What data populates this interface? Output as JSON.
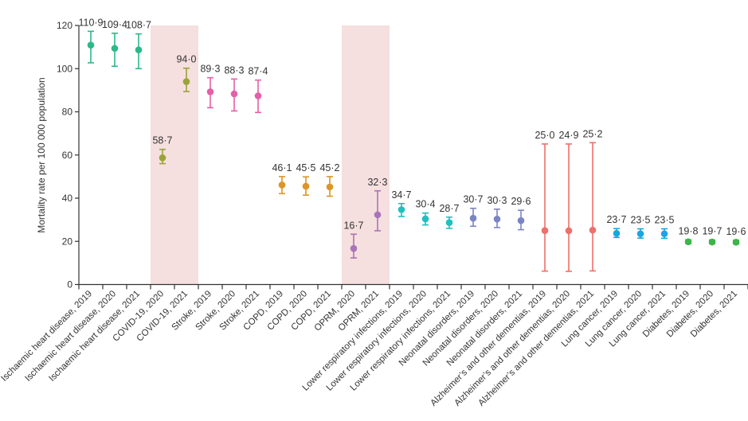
{
  "chart_data": {
    "type": "scatter",
    "title": "",
    "xlabel": "",
    "ylabel": "Mortality rate per 100 000 population",
    "ylim": [
      0,
      120
    ],
    "yticks": [
      "0",
      "20",
      "40",
      "60",
      "80",
      "100",
      "120"
    ],
    "grid": false,
    "highlight_color": "#f6dfdf",
    "highlighted_groups": [
      "COVID-19",
      "OPRM"
    ],
    "points": [
      {
        "label": "Ischaemic heart disease, 2019",
        "value": 110.9,
        "value_label": "110·9",
        "lower": 102.7,
        "upper": 117.3,
        "color": "#2bb987"
      },
      {
        "label": "Ischaemic heart disease, 2020",
        "value": 109.4,
        "value_label": "109·4",
        "lower": 101.1,
        "upper": 116.4,
        "color": "#2bb987"
      },
      {
        "label": "Ischaemic heart disease, 2021",
        "value": 108.7,
        "value_label": "108·7",
        "lower": 100.0,
        "upper": 116.1,
        "color": "#2bb987"
      },
      {
        "label": "COVID-19, 2020",
        "value": 58.7,
        "value_label": "58·7",
        "lower": 56.0,
        "upper": 62.6,
        "color": "#9aa33a"
      },
      {
        "label": "COVID-19, 2021",
        "value": 94.0,
        "value_label": "94·0",
        "lower": 89.4,
        "upper": 100.2,
        "color": "#9aa33a"
      },
      {
        "label": "Stroke, 2019",
        "value": 89.3,
        "value_label": "89·3",
        "lower": 81.9,
        "upper": 95.8,
        "color": "#e55fa8"
      },
      {
        "label": "Stroke, 2020",
        "value": 88.3,
        "value_label": "88·3",
        "lower": 80.4,
        "upper": 95.2,
        "color": "#e55fa8"
      },
      {
        "label": "Stroke, 2021",
        "value": 87.4,
        "value_label": "87·4",
        "lower": 79.7,
        "upper": 94.7,
        "color": "#e55fa8"
      },
      {
        "label": "COPD, 2019",
        "value": 46.1,
        "value_label": "46·1",
        "lower": 42.1,
        "upper": 50.0,
        "color": "#dc9527"
      },
      {
        "label": "COPD, 2020",
        "value": 45.5,
        "value_label": "45·5",
        "lower": 41.4,
        "upper": 49.9,
        "color": "#dc9527"
      },
      {
        "label": "COPD, 2021",
        "value": 45.2,
        "value_label": "45·2",
        "lower": 40.9,
        "upper": 50.0,
        "color": "#dc9527"
      },
      {
        "label": "OPRM, 2020",
        "value": 16.7,
        "value_label": "16·7",
        "lower": 12.3,
        "upper": 23.3,
        "color": "#a974b8"
      },
      {
        "label": "OPRM, 2021",
        "value": 32.3,
        "value_label": "32·3",
        "lower": 24.9,
        "upper": 43.4,
        "color": "#a974b8"
      },
      {
        "label": "Lower respiratory infections, 2019",
        "value": 34.7,
        "value_label": "34·7",
        "lower": 31.5,
        "upper": 37.5,
        "color": "#22bfc0"
      },
      {
        "label": "Lower respiratory infections, 2020",
        "value": 30.4,
        "value_label": "30·4",
        "lower": 27.6,
        "upper": 33.1,
        "color": "#22bfc0"
      },
      {
        "label": "Lower respiratory infections, 2021",
        "value": 28.7,
        "value_label": "28·7",
        "lower": 26.0,
        "upper": 31.2,
        "color": "#22bfc0"
      },
      {
        "label": "Neonatal disorders, 2019",
        "value": 30.7,
        "value_label": "30·7",
        "lower": 27.0,
        "upper": 35.3,
        "color": "#7b85c4"
      },
      {
        "label": "Neonatal disorders, 2020",
        "value": 30.3,
        "value_label": "30·3",
        "lower": 26.4,
        "upper": 34.9,
        "color": "#7b85c4"
      },
      {
        "label": "Neonatal disorders, 2021",
        "value": 29.6,
        "value_label": "29·6",
        "lower": 25.4,
        "upper": 34.4,
        "color": "#7b85c4"
      },
      {
        "label": "Alzheimer’s and other dementias, 2019",
        "value": 25.0,
        "value_label": "25·0",
        "lower": 6.2,
        "upper": 65.1,
        "color": "#ef6f6a"
      },
      {
        "label": "Alzheimer’s and other dementias, 2020",
        "value": 24.9,
        "value_label": "24·9",
        "lower": 6.1,
        "upper": 65.1,
        "color": "#ef6f6a"
      },
      {
        "label": "Alzheimer’s and other dementias, 2021",
        "value": 25.2,
        "value_label": "25·2",
        "lower": 6.3,
        "upper": 65.7,
        "color": "#ef6f6a"
      },
      {
        "label": "Lung cancer, 2019",
        "value": 23.7,
        "value_label": "23·7",
        "lower": 21.8,
        "upper": 25.9,
        "color": "#1aa6e0"
      },
      {
        "label": "Lung cancer, 2020",
        "value": 23.5,
        "value_label": "23·5",
        "lower": 21.5,
        "upper": 25.8,
        "color": "#1aa6e0"
      },
      {
        "label": "Lung cancer, 2021",
        "value": 23.5,
        "value_label": "23·5",
        "lower": 21.4,
        "upper": 25.8,
        "color": "#1aa6e0"
      },
      {
        "label": "Diabetes, 2019",
        "value": 19.8,
        "value_label": "19·8",
        "lower": 19.0,
        "upper": 20.7,
        "color": "#3cb64a"
      },
      {
        "label": "Diabetes, 2020",
        "value": 19.7,
        "value_label": "19·7",
        "lower": 18.9,
        "upper": 20.6,
        "color": "#3cb64a"
      },
      {
        "label": "Diabetes, 2021",
        "value": 19.6,
        "value_label": "19·6",
        "lower": 18.8,
        "upper": 20.5,
        "color": "#3cb64a"
      }
    ]
  }
}
